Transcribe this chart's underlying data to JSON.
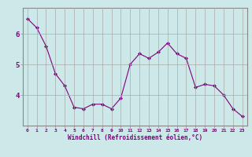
{
  "x": [
    0,
    1,
    2,
    3,
    4,
    5,
    6,
    7,
    8,
    9,
    10,
    11,
    12,
    13,
    14,
    15,
    16,
    17,
    18,
    19,
    20,
    21,
    22,
    23
  ],
  "y": [
    6.5,
    6.2,
    5.6,
    4.7,
    4.3,
    3.6,
    3.55,
    3.7,
    3.7,
    3.55,
    3.9,
    5.0,
    5.35,
    5.2,
    5.4,
    5.7,
    5.35,
    5.2,
    4.25,
    4.35,
    4.3,
    4.0,
    3.55,
    3.3
  ],
  "line_color": "#800080",
  "marker": "D",
  "marker_size": 2.0,
  "bg_color": "#cce8e8",
  "grid_color": "#aaaaaa",
  "xlabel": "Windchill (Refroidissement éolien,°C)",
  "xlabel_color": "#800080",
  "tick_color": "#800080",
  "yticks": [
    4,
    5,
    6
  ],
  "xtick_labels": [
    "0",
    "1",
    "2",
    "3",
    "4",
    "5",
    "6",
    "7",
    "8",
    "9",
    "10",
    "11",
    "12",
    "13",
    "14",
    "15",
    "16",
    "17",
    "18",
    "19",
    "20",
    "21",
    "22",
    "23"
  ],
  "ylim": [
    3.0,
    6.85
  ],
  "xlim": [
    -0.5,
    23.5
  ]
}
